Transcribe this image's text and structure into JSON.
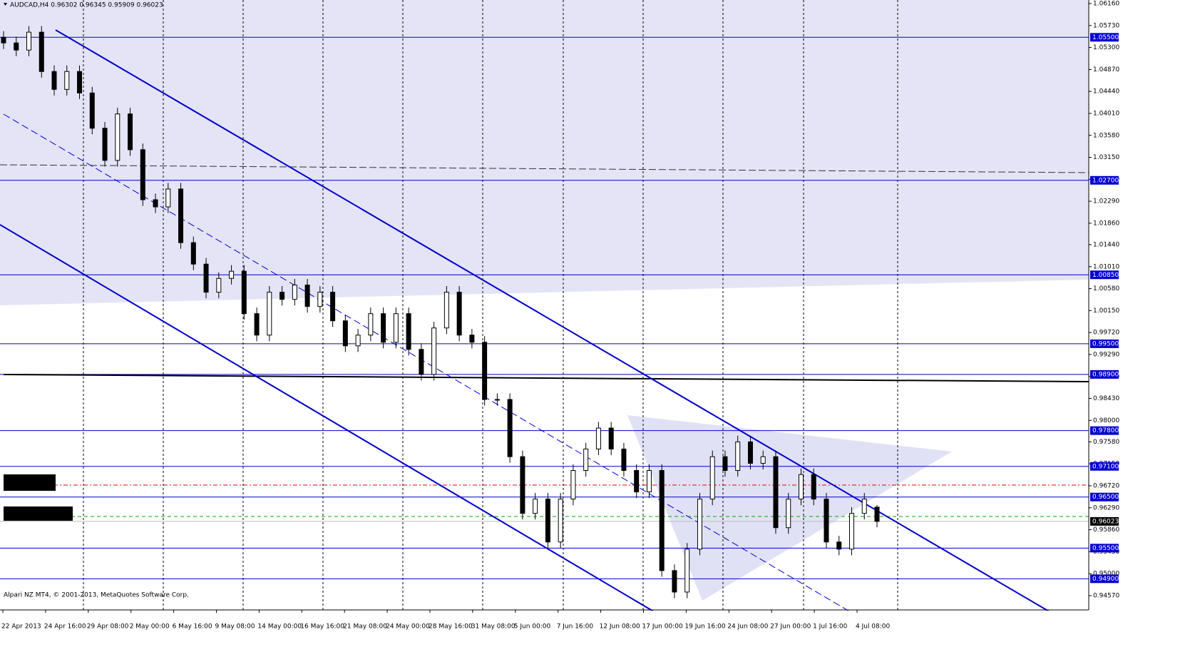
{
  "chart_data": {
    "type": "candlestick",
    "title": "AUDCAD,H4  0.96302 0.96345 0.95909 0.96023",
    "footer": "Alpari NZ MT4, © 2001-2013, MetaQuotes Software Corp.",
    "x_tick_labels": [
      "22 Apr 2013",
      "24 Apr 16:00",
      "29 Apr 08:00",
      "2 May 00:00",
      "6 May 16:00",
      "9 May 08:00",
      "14 May 00:00",
      "16 May 16:00",
      "21 May 08:00",
      "24 May 00:00",
      "28 May 16:00",
      "31 May 08:00",
      "5 Jun 00:00",
      "7 Jun 16:00",
      "12 Jun 08:00",
      "17 Jun 00:00",
      "19 Jun 16:00",
      "24 Jun 08:00",
      "27 Jun 00:00",
      "1 Jul 16:00",
      "4 Jul 08:00"
    ],
    "open": [
      1.055,
      1.0539,
      1.0525,
      1.056,
      1.0483,
      1.0448,
      1.0483,
      1.0441,
      1.0372,
      1.0309,
      1.04,
      1.033,
      1.0232,
      1.0218,
      1.0253,
      1.0148,
      1.0106,
      1.0051,
      1.0078,
      1.0092,
      1.0009,
      0.9967,
      1.0051,
      1.0037,
      1.0065,
      1.0023,
      1.0051,
      0.9995,
      0.9946,
      0.9967,
      1.0009,
      0.9953,
      1.0009,
      0.9939,
      0.989,
      0.9981,
      1.0051,
      0.9967,
      0.9953,
      0.9841,
      0.9841,
      0.9729,
      0.9618,
      0.9646,
      0.9562,
      0.9646,
      0.9702,
      0.9744,
      0.9785,
      0.9744,
      0.9702,
      0.966,
      0.9702,
      0.9506,
      0.9464,
      0.9548,
      0.9646,
      0.9729,
      0.9702,
      0.9758,
      0.9716,
      0.9729,
      0.959,
      0.9646,
      0.9694,
      0.9646,
      0.9562,
      0.9548,
      0.9618,
      0.96302
    ],
    "high": [
      1.0562,
      1.0551,
      1.0572,
      1.0572,
      1.0495,
      1.0495,
      1.0495,
      1.0453,
      1.0384,
      1.0412,
      1.0412,
      1.0342,
      1.0244,
      1.0265,
      1.0265,
      1.016,
      1.0118,
      1.009,
      1.0104,
      1.0104,
      1.0021,
      1.0063,
      1.0063,
      1.0077,
      1.0077,
      1.0063,
      1.0063,
      1.0007,
      0.9979,
      1.0021,
      1.0021,
      1.0021,
      1.0021,
      0.9951,
      0.9993,
      1.0063,
      1.0063,
      0.9979,
      0.9965,
      0.9853,
      0.9853,
      0.9741,
      0.9658,
      0.9658,
      0.9658,
      0.9714,
      0.9756,
      0.9797,
      0.9797,
      0.9756,
      0.9714,
      0.9714,
      0.9714,
      0.9518,
      0.956,
      0.9658,
      0.9741,
      0.9741,
      0.977,
      0.977,
      0.9741,
      0.9741,
      0.9658,
      0.9706,
      0.9706,
      0.9658,
      0.9574,
      0.963,
      0.9658,
      0.96345
    ],
    "low": [
      1.0527,
      1.0513,
      1.0513,
      1.0471,
      1.0436,
      1.0436,
      1.0429,
      1.036,
      1.0297,
      1.0297,
      1.0318,
      1.022,
      1.0206,
      1.0206,
      1.0136,
      1.0094,
      1.0039,
      1.0039,
      1.0066,
      0.9997,
      0.9955,
      0.9955,
      1.0025,
      1.0025,
      1.0011,
      1.0011,
      0.9983,
      0.9934,
      0.9934,
      0.9955,
      0.9941,
      0.9941,
      0.9927,
      0.9878,
      0.9878,
      0.9969,
      0.9955,
      0.9941,
      0.9829,
      0.9829,
      0.9717,
      0.9606,
      0.9606,
      0.955,
      0.955,
      0.9634,
      0.969,
      0.9732,
      0.9732,
      0.969,
      0.9648,
      0.9648,
      0.9494,
      0.9452,
      0.9452,
      0.9536,
      0.9634,
      0.969,
      0.969,
      0.9704,
      0.9704,
      0.9578,
      0.9578,
      0.9634,
      0.9634,
      0.955,
      0.9536,
      0.9536,
      0.9606,
      0.95909
    ],
    "close": [
      1.0539,
      1.0525,
      1.056,
      1.0483,
      1.0448,
      1.0483,
      1.0441,
      1.0372,
      1.0309,
      1.04,
      1.033,
      1.0232,
      1.0218,
      1.0253,
      1.0148,
      1.0106,
      1.0051,
      1.0078,
      1.0092,
      1.0009,
      0.9967,
      1.0051,
      1.0037,
      1.0065,
      1.0023,
      1.0051,
      0.9995,
      0.9946,
      0.9967,
      1.0009,
      0.9953,
      1.0009,
      0.9939,
      0.989,
      0.9981,
      1.0051,
      0.9967,
      0.9953,
      0.9841,
      0.9841,
      0.9729,
      0.9618,
      0.9646,
      0.9562,
      0.9646,
      0.9702,
      0.9744,
      0.9785,
      0.9744,
      0.9702,
      0.966,
      0.9702,
      0.9506,
      0.9464,
      0.9548,
      0.9646,
      0.9729,
      0.9702,
      0.9758,
      0.9716,
      0.9729,
      0.959,
      0.9646,
      0.9694,
      0.9646,
      0.9562,
      0.9548,
      0.9618,
      0.9646,
      0.96023
    ],
    "up_color": "#ffffff",
    "down_color": "#000000",
    "wick_color": "#000000",
    "ylim": [
      0.9429,
      1.0623
    ],
    "yticks": [
      {
        "value": 1.0616,
        "label": "1.06160"
      },
      {
        "value": 1.0573,
        "label": "1.05730"
      },
      {
        "value": 1.053,
        "label": "1.05300"
      },
      {
        "value": 1.0487,
        "label": "1.04870"
      },
      {
        "value": 1.0444,
        "label": "1.04440"
      },
      {
        "value": 1.0401,
        "label": "1.04010"
      },
      {
        "value": 1.0358,
        "label": "1.03580"
      },
      {
        "value": 1.0315,
        "label": "1.03150"
      },
      {
        "value": 1.0272,
        "label": "1.02720"
      },
      {
        "value": 1.0229,
        "label": "1.02290"
      },
      {
        "value": 1.0186,
        "label": "1.01860"
      },
      {
        "value": 1.0144,
        "label": "1.01440"
      },
      {
        "value": 1.0101,
        "label": "1.01010"
      },
      {
        "value": 1.0058,
        "label": "1.00580"
      },
      {
        "value": 1.0015,
        "label": "1.00150"
      },
      {
        "value": 0.9972,
        "label": "0.99720"
      },
      {
        "value": 0.9929,
        "label": "0.99290"
      },
      {
        "value": 0.9886,
        "label": "0.98860"
      },
      {
        "value": 0.9843,
        "label": "0.98430"
      },
      {
        "value": 0.98,
        "label": "0.98000"
      },
      {
        "value": 0.9758,
        "label": "0.97580"
      },
      {
        "value": 0.9715,
        "label": "0.97150"
      },
      {
        "value": 0.9672,
        "label": "0.96720"
      },
      {
        "value": 0.9629,
        "label": "0.96290"
      },
      {
        "value": 0.9586,
        "label": "0.95860"
      },
      {
        "value": 0.9543,
        "label": "0.95430"
      },
      {
        "value": 0.95,
        "label": "0.95000"
      },
      {
        "value": 0.9457,
        "label": "0.94570"
      }
    ],
    "levels": [
      {
        "value": 1.055,
        "label": "1.05500"
      },
      {
        "value": 1.027,
        "label": "1.02700"
      },
      {
        "value": 1.0085,
        "label": "1.00850"
      },
      {
        "value": 0.995,
        "label": "0.99500"
      },
      {
        "value": 0.989,
        "label": "0.98900"
      },
      {
        "value": 0.978,
        "label": "0.97800"
      },
      {
        "value": 0.971,
        "label": "0.97100"
      },
      {
        "value": 0.965,
        "label": "0.96500"
      },
      {
        "value": 0.955,
        "label": "0.95500"
      },
      {
        "value": 0.949,
        "label": "0.94900"
      }
    ],
    "level_color": "#0000cc",
    "last_price": {
      "value": 0.96023,
      "label": "0.96023"
    }
  }
}
